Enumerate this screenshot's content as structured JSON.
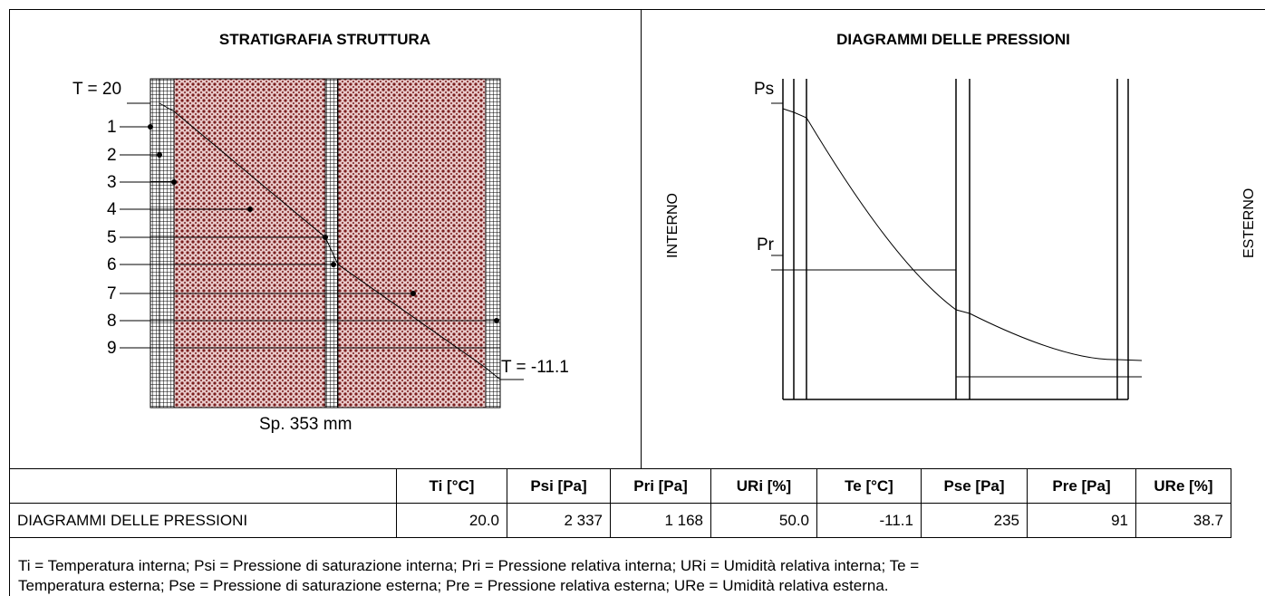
{
  "left_panel": {
    "title": "STRATIGRAFIA STRUTTURA",
    "t_inside_label": "T = 20",
    "t_outside_label": "T = -11.1",
    "thickness_label": "Sp. 353 mm",
    "point_labels": [
      "1",
      "2",
      "3",
      "4",
      "5",
      "6",
      "7",
      "8",
      "9"
    ],
    "hatch_color": "#8b1a1a"
  },
  "right_panel": {
    "title": "DIAGRAMMI DELLE PRESSIONI",
    "ps_label": "Ps",
    "pr_label": "Pr",
    "interno_label": "INTERNO",
    "esterno_label": "ESTERNO"
  },
  "table": {
    "headers": [
      "",
      "Ti [°C]",
      "Psi [Pa]",
      "Pri [Pa]",
      "URi [%]",
      "Te [°C]",
      "Pse [Pa]",
      "Pre [Pa]",
      "URe [%]"
    ],
    "row": [
      "DIAGRAMMI DELLE PRESSIONI",
      "20.0",
      "2 337",
      "1 168",
      "50.0",
      "-11.1",
      "235",
      "91",
      "38.7"
    ]
  },
  "legend": {
    "line1": "Ti = Temperatura interna; Psi = Pressione di saturazione interna; Pri = Pressione relativa interna; URi = Umidità relativa interna; Te =",
    "line2": "Temperatura esterna; Pse = Pressione di saturazione esterna; Pre = Pressione relativa esterna; URe = Umidità relativa esterna."
  }
}
